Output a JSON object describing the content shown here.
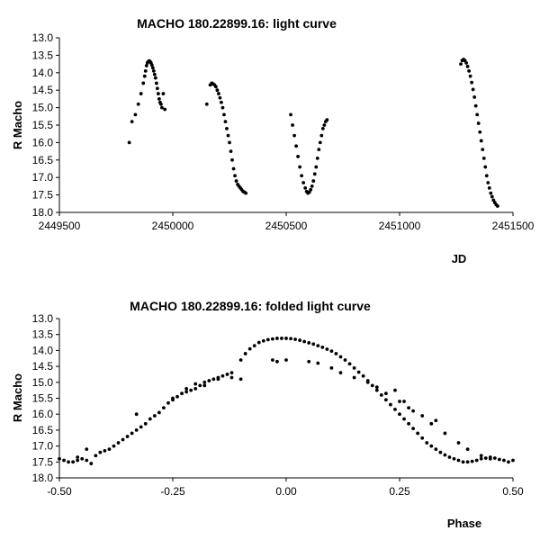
{
  "chart_data": [
    {
      "type": "scatter",
      "title": "MACHO 180.22899.16: light curve",
      "xlabel": "JD",
      "ylabel": "R Macho",
      "xlim": [
        2449500,
        2451500
      ],
      "ylim": [
        13.0,
        18.0
      ],
      "y_inverted": true,
      "x_ticks": [
        2449500,
        2450000,
        2450500,
        2451000,
        2451500
      ],
      "x_tick_labels": [
        "2449500",
        "2450000",
        "2450500",
        "2451000",
        "2451500"
      ],
      "y_tick_labels": [
        "13.0",
        "13.5",
        "14.0",
        "14.5",
        "15.0",
        "15.5",
        "16.0",
        "16.5",
        "17.0",
        "17.5",
        "18.0"
      ],
      "grid": false,
      "x": [
        2449808,
        2449820,
        2449835,
        2449848,
        2449860,
        2449870,
        2449876,
        2449880,
        2449884,
        2449888,
        2449892,
        2449896,
        2449900,
        2449904,
        2449908,
        2449912,
        2449916,
        2449920,
        2449924,
        2449928,
        2449932,
        2449936,
        2449940,
        2449944,
        2449948,
        2449952,
        2449958,
        2449965,
        2450150,
        2450165,
        2450172,
        2450178,
        2450184,
        2450190,
        2450196,
        2450202,
        2450208,
        2450214,
        2450220,
        2450226,
        2450232,
        2450238,
        2450244,
        2450250,
        2450256,
        2450262,
        2450268,
        2450274,
        2450280,
        2450286,
        2450292,
        2450298,
        2450304,
        2450310,
        2450316,
        2450322,
        2450520,
        2450528,
        2450536,
        2450544,
        2450552,
        2450560,
        2450568,
        2450576,
        2450584,
        2450590,
        2450596,
        2450602,
        2450608,
        2450614,
        2450620,
        2450626,
        2450632,
        2450638,
        2450644,
        2450650,
        2450656,
        2450662,
        2450668,
        2450674,
        2450680,
        2451270,
        2451276,
        2451282,
        2451288,
        2451294,
        2451300,
        2451306,
        2451312,
        2451318,
        2451324,
        2451330,
        2451336,
        2451342,
        2451348,
        2451354,
        2451360,
        2451366,
        2451372,
        2451378,
        2451384,
        2451390,
        2451396,
        2451402,
        2451408,
        2451414,
        2451420,
        2451426,
        2451432
      ],
      "y": [
        16.0,
        15.4,
        15.2,
        14.9,
        14.6,
        14.3,
        14.1,
        13.95,
        13.8,
        13.72,
        13.68,
        13.66,
        13.68,
        13.72,
        13.78,
        13.86,
        13.95,
        14.05,
        14.15,
        14.3,
        14.45,
        14.6,
        14.75,
        14.85,
        14.9,
        15.0,
        14.6,
        15.05,
        14.9,
        14.35,
        14.3,
        14.32,
        14.35,
        14.4,
        14.5,
        14.6,
        14.72,
        14.85,
        15.0,
        15.2,
        15.4,
        15.6,
        15.8,
        16.0,
        16.25,
        16.5,
        16.75,
        16.95,
        17.1,
        17.2,
        17.25,
        17.3,
        17.35,
        17.4,
        17.42,
        17.45,
        15.2,
        15.5,
        15.8,
        16.1,
        16.4,
        16.7,
        16.95,
        17.15,
        17.3,
        17.4,
        17.45,
        17.42,
        17.35,
        17.25,
        17.1,
        16.9,
        16.7,
        16.45,
        16.2,
        16.0,
        15.8,
        15.6,
        15.5,
        15.4,
        15.35,
        13.75,
        13.65,
        13.62,
        13.65,
        13.72,
        13.82,
        13.95,
        14.1,
        14.28,
        14.48,
        14.7,
        14.95,
        15.2,
        15.45,
        15.7,
        15.95,
        16.2,
        16.45,
        16.7,
        16.95,
        17.15,
        17.3,
        17.45,
        17.55,
        17.65,
        17.72,
        17.78,
        17.82
      ]
    },
    {
      "type": "scatter",
      "title": "MACHO 180.22899.16: folded light curve",
      "xlabel": "Phase",
      "ylabel": "R Macho",
      "xlim": [
        -0.5,
        0.5
      ],
      "ylim": [
        13.0,
        18.0
      ],
      "y_inverted": true,
      "x_ticks": [
        -0.5,
        -0.25,
        0.0,
        0.25,
        0.5
      ],
      "x_tick_labels": [
        "-0.50",
        "-0.25",
        "0.00",
        "0.25",
        "0.50"
      ],
      "y_tick_labels": [
        "13.0",
        "13.5",
        "14.0",
        "14.5",
        "15.0",
        "15.5",
        "16.0",
        "16.5",
        "17.0",
        "17.5",
        "18.0"
      ],
      "grid": false,
      "x": [
        -0.5,
        -0.49,
        -0.48,
        -0.47,
        -0.46,
        -0.45,
        -0.44,
        -0.43,
        -0.42,
        -0.41,
        -0.4,
        -0.39,
        -0.38,
        -0.37,
        -0.36,
        -0.35,
        -0.34,
        -0.33,
        -0.32,
        -0.31,
        -0.3,
        -0.29,
        -0.28,
        -0.27,
        -0.26,
        -0.25,
        -0.24,
        -0.23,
        -0.22,
        -0.21,
        -0.2,
        -0.19,
        -0.18,
        -0.17,
        -0.16,
        -0.15,
        -0.14,
        -0.13,
        -0.12,
        -0.1,
        -0.09,
        -0.08,
        -0.07,
        -0.06,
        -0.05,
        -0.04,
        -0.03,
        -0.02,
        -0.01,
        0.0,
        0.01,
        0.02,
        0.03,
        0.04,
        0.05,
        0.06,
        0.07,
        0.08,
        0.09,
        0.1,
        0.11,
        0.12,
        0.13,
        0.14,
        0.15,
        0.16,
        0.17,
        0.18,
        0.19,
        0.2,
        0.21,
        0.22,
        0.23,
        0.24,
        0.25,
        0.26,
        0.27,
        0.28,
        0.29,
        0.3,
        0.31,
        0.32,
        0.33,
        0.34,
        0.35,
        0.36,
        0.37,
        0.38,
        0.39,
        0.4,
        0.41,
        0.42,
        0.43,
        0.44,
        0.45,
        0.46,
        0.47,
        0.48,
        0.49,
        0.5,
        -0.03,
        -0.02,
        0.0,
        0.05,
        0.07,
        0.1,
        0.12,
        0.15,
        0.18,
        0.2,
        0.22,
        0.25,
        0.27,
        0.3,
        0.32,
        0.35,
        0.38,
        0.4,
        0.43,
        0.45,
        -0.46,
        -0.44,
        -0.33,
        -0.25,
        -0.22,
        -0.2,
        -0.18,
        -0.15,
        -0.12,
        -0.1,
        0.24,
        0.26,
        0.28,
        0.33
      ],
      "y": [
        17.4,
        17.45,
        17.5,
        17.5,
        17.45,
        17.4,
        17.45,
        17.55,
        17.3,
        17.2,
        17.15,
        17.1,
        17.0,
        16.9,
        16.8,
        16.7,
        16.6,
        16.5,
        16.4,
        16.3,
        16.15,
        16.05,
        15.95,
        15.8,
        15.65,
        15.55,
        15.45,
        15.35,
        15.3,
        15.25,
        15.2,
        15.1,
        15.0,
        14.95,
        14.9,
        14.85,
        14.8,
        14.75,
        14.7,
        14.3,
        14.1,
        13.95,
        13.85,
        13.75,
        13.7,
        13.66,
        13.64,
        13.62,
        13.62,
        13.62,
        13.63,
        13.65,
        13.68,
        13.72,
        13.76,
        13.8,
        13.85,
        13.9,
        13.96,
        14.02,
        14.1,
        14.2,
        14.3,
        14.42,
        14.55,
        14.68,
        14.8,
        14.95,
        15.1,
        15.25,
        15.4,
        15.55,
        15.7,
        15.85,
        16.0,
        16.15,
        16.3,
        16.45,
        16.6,
        16.75,
        16.9,
        17.0,
        17.1,
        17.2,
        17.28,
        17.35,
        17.4,
        17.45,
        17.5,
        17.5,
        17.48,
        17.45,
        17.4,
        17.38,
        17.35,
        17.38,
        17.42,
        17.45,
        17.5,
        17.45,
        14.3,
        14.35,
        14.3,
        14.35,
        14.4,
        14.55,
        14.7,
        14.85,
        15.0,
        15.15,
        15.35,
        15.6,
        15.8,
        16.05,
        16.3,
        16.6,
        16.9,
        17.1,
        17.3,
        17.4,
        17.35,
        17.1,
        16.0,
        15.5,
        15.2,
        15.05,
        15.1,
        14.9,
        14.85,
        14.9,
        15.25,
        15.6,
        15.9,
        16.2
      ]
    }
  ]
}
